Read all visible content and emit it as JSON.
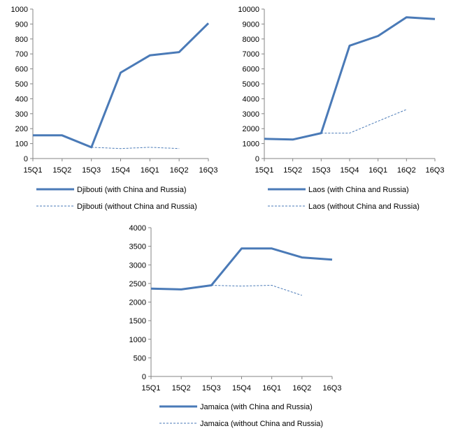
{
  "chart_data": [
    {
      "type": "line",
      "categories": [
        "15Q1",
        "15Q2",
        "15Q3",
        "15Q4",
        "16Q1",
        "16Q2",
        "16Q3"
      ],
      "ylim": [
        0,
        1000
      ],
      "yticks": [
        0,
        100,
        200,
        300,
        400,
        500,
        600,
        700,
        800,
        900,
        1000
      ],
      "grid": false,
      "legend_position": "bottom",
      "series": [
        {
          "name": "Djibouti (with China and Russia)",
          "style": "solid",
          "color": "#4a7ab7",
          "values": [
            155,
            155,
            75,
            575,
            690,
            712,
            905
          ]
        },
        {
          "name": "Djibouti (without China and Russia)",
          "style": "dashed",
          "color": "#4a7ab7",
          "values": [
            null,
            null,
            75,
            67,
            75,
            67,
            null
          ]
        }
      ]
    },
    {
      "type": "line",
      "categories": [
        "15Q1",
        "15Q2",
        "15Q3",
        "15Q4",
        "16Q1",
        "16Q2",
        "16Q3"
      ],
      "ylim": [
        0,
        10000
      ],
      "yticks": [
        0,
        1000,
        2000,
        3000,
        4000,
        5000,
        6000,
        7000,
        8000,
        9000,
        10000
      ],
      "grid": false,
      "legend_position": "bottom",
      "series": [
        {
          "name": "Laos (with China and Russia)",
          "style": "solid",
          "color": "#4a7ab7",
          "values": [
            1320,
            1270,
            1700,
            7550,
            8200,
            9450,
            9330
          ]
        },
        {
          "name": "Laos (without China and Russia)",
          "style": "dashed",
          "color": "#4a7ab7",
          "values": [
            null,
            null,
            1700,
            1700,
            2500,
            3280,
            null
          ]
        }
      ]
    },
    {
      "type": "line",
      "categories": [
        "15Q1",
        "15Q2",
        "15Q3",
        "15Q4",
        "16Q1",
        "16Q2",
        "16Q3"
      ],
      "ylim": [
        0,
        4000
      ],
      "yticks": [
        0,
        500,
        1000,
        1500,
        2000,
        2500,
        3000,
        3500,
        4000
      ],
      "grid": false,
      "legend_position": "bottom",
      "series": [
        {
          "name": "Jamaica (with China and Russia)",
          "style": "solid",
          "color": "#4a7ab7",
          "values": [
            2360,
            2340,
            2450,
            3440,
            3440,
            3200,
            3140
          ]
        },
        {
          "name": "Jamaica (without China and Russia)",
          "style": "dashed",
          "color": "#4a7ab7",
          "values": [
            null,
            null,
            2450,
            2430,
            2450,
            2180,
            null
          ]
        }
      ]
    }
  ]
}
